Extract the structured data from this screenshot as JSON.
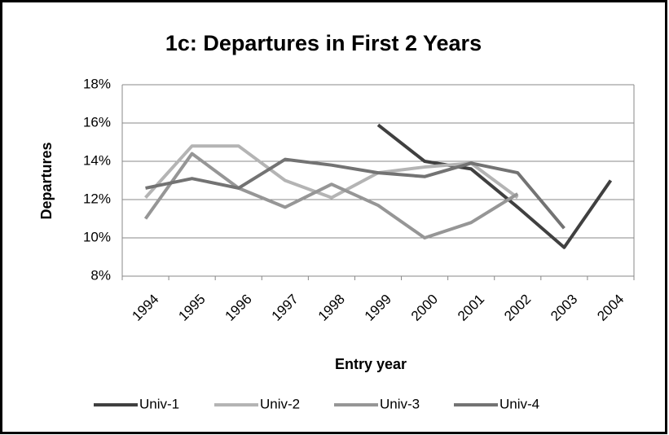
{
  "chart_data": {
    "type": "line",
    "title": "1c: Departures in First 2 Years",
    "x_label": "Entry year",
    "y_label": "Departures",
    "categories": [
      "1994",
      "1995",
      "1996",
      "1997",
      "1998",
      "1999",
      "2000",
      "2001",
      "2002",
      "2003",
      "2004"
    ],
    "series": [
      {
        "name": "Univ-1",
        "color": "#404040",
        "values": [
          null,
          null,
          null,
          null,
          null,
          15.9,
          14.0,
          13.6,
          11.6,
          9.5,
          13.0
        ]
      },
      {
        "name": "Univ-2",
        "color": "#b4b4b4",
        "values": [
          12.1,
          14.8,
          14.8,
          13.0,
          12.1,
          13.4,
          13.7,
          13.9,
          12.1,
          null,
          null
        ]
      },
      {
        "name": "Univ-3",
        "color": "#969696",
        "values": [
          11.0,
          14.4,
          12.6,
          11.6,
          12.8,
          11.7,
          10.0,
          10.8,
          12.3,
          null,
          null
        ]
      },
      {
        "name": "Univ-4",
        "color": "#737373",
        "values": [
          12.6,
          13.1,
          12.6,
          14.1,
          13.8,
          13.4,
          13.2,
          13.9,
          13.4,
          10.5,
          null
        ]
      }
    ],
    "ylim": [
      8,
      18
    ],
    "yticks": [
      {
        "value": 8,
        "label": "8%"
      },
      {
        "value": 10,
        "label": "10%"
      },
      {
        "value": 12,
        "label": "12%"
      },
      {
        "value": 14,
        "label": "14%"
      },
      {
        "value": 16,
        "label": "16%"
      },
      {
        "value": 18,
        "label": "18%"
      }
    ],
    "grid": true,
    "legend": "bottom"
  }
}
